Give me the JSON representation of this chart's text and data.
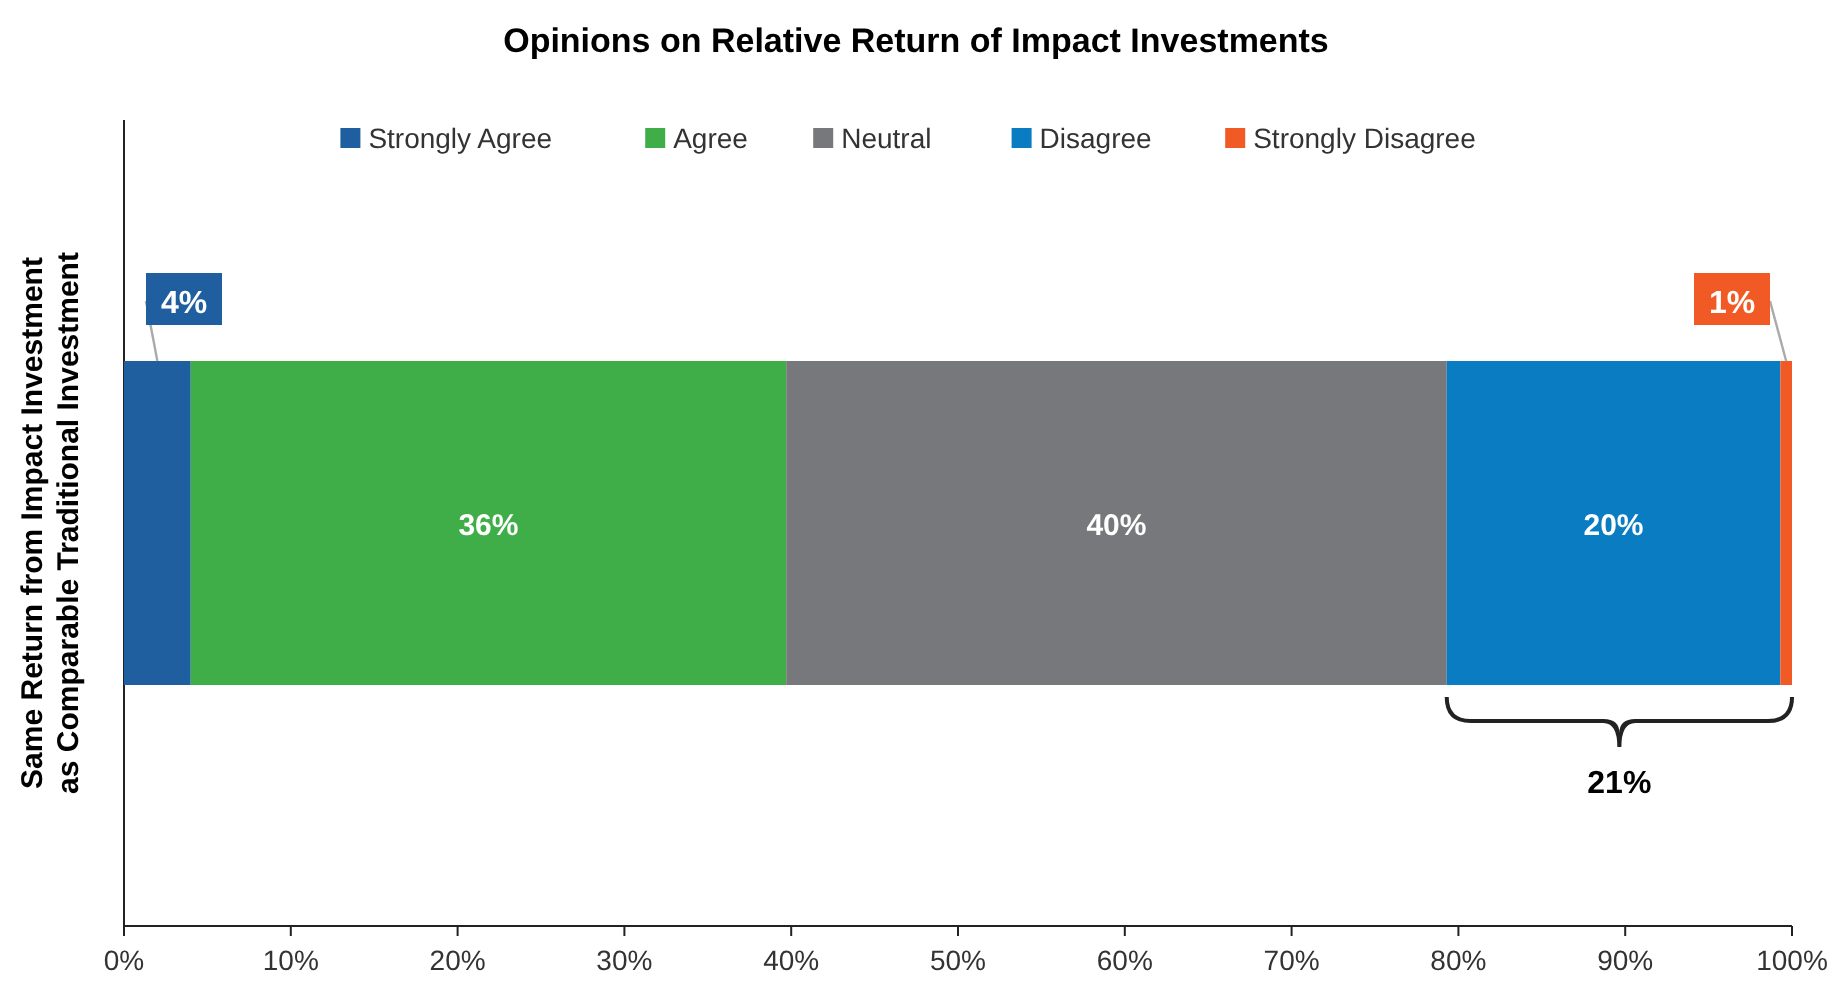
{
  "chart_data": {
    "type": "bar",
    "orientation": "horizontal",
    "stacked": true,
    "title": "Opinions on Relative Return of Impact Investments",
    "categories": [
      "Same Return from Impact Investment as Comparable Traditional Investment"
    ],
    "series": [
      {
        "name": "Strongly Agree",
        "color": "#1f5fa0",
        "values": [
          4
        ],
        "value_labels": [
          "4%"
        ]
      },
      {
        "name": "Agree",
        "color": "#3fae49",
        "values": [
          35.7
        ],
        "value_labels": [
          "36%"
        ]
      },
      {
        "name": "Neutral",
        "color": "#77787b",
        "values": [
          39.6
        ],
        "value_labels": [
          "40%"
        ]
      },
      {
        "name": "Disagree",
        "color": "#0a7cc1",
        "values": [
          20
        ],
        "value_labels": [
          "20%"
        ]
      },
      {
        "name": "Strongly Disagree",
        "color": "#f15a24",
        "values": [
          0.7
        ],
        "value_labels": [
          "1%"
        ]
      }
    ],
    "xlim": [
      0,
      100
    ],
    "xticks": [
      {
        "value": 0,
        "label": "0%"
      },
      {
        "value": 10,
        "label": "10%"
      },
      {
        "value": 20,
        "label": "20%"
      },
      {
        "value": 30,
        "label": "30%"
      },
      {
        "value": 40,
        "label": "40%"
      },
      {
        "value": 50,
        "label": "50%"
      },
      {
        "value": 60,
        "label": "60%"
      },
      {
        "value": 70,
        "label": "70%"
      },
      {
        "value": 80,
        "label": "80%"
      },
      {
        "value": 90,
        "label": "90%"
      },
      {
        "value": 100,
        "label": "100%"
      }
    ],
    "legend": "top",
    "grid": false,
    "annotations": [
      "21%"
    ]
  }
}
